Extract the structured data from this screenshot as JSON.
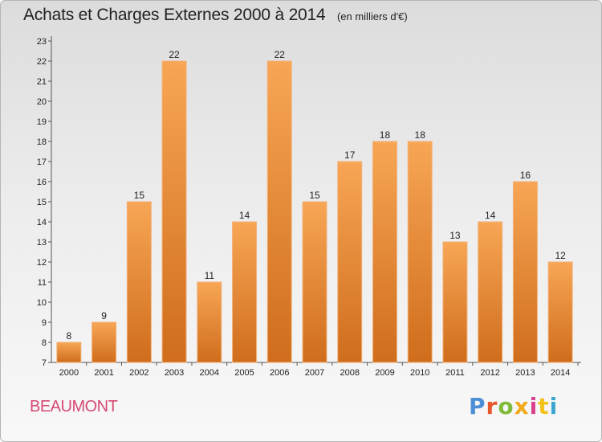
{
  "header": {
    "title": "Achats et Charges Externes 2000 à 2014",
    "unit": "(en milliers d'€)"
  },
  "footer": {
    "city": "BEAUMONT",
    "brand": "Proxiti",
    "brand_colors": [
      "#4c8fd6",
      "#e8562b",
      "#7fbb3a",
      "#f2a81b",
      "#d83f8c",
      "#f2c21a",
      "#3aa6d0"
    ]
  },
  "colors": {
    "bar_light": "#f7a655",
    "bar_dark": "#cf6d1c",
    "city": "#d64a72"
  },
  "chart_data": {
    "type": "bar",
    "title": "Achats et Charges Externes 2000 à 2014",
    "subtitle": "(en milliers d'€)",
    "categories": [
      "2000",
      "2001",
      "2002",
      "2003",
      "2004",
      "2005",
      "2006",
      "2007",
      "2008",
      "2009",
      "2010",
      "2011",
      "2012",
      "2013",
      "2014"
    ],
    "values": [
      8,
      9,
      15,
      22,
      11,
      14,
      22,
      15,
      17,
      18,
      18,
      13,
      14,
      16,
      12
    ],
    "ylim": [
      7,
      23
    ],
    "yticks": [
      7,
      8,
      9,
      10,
      11,
      12,
      13,
      14,
      15,
      16,
      17,
      18,
      19,
      20,
      21,
      22,
      23
    ],
    "grid": false,
    "data_labels": true
  }
}
